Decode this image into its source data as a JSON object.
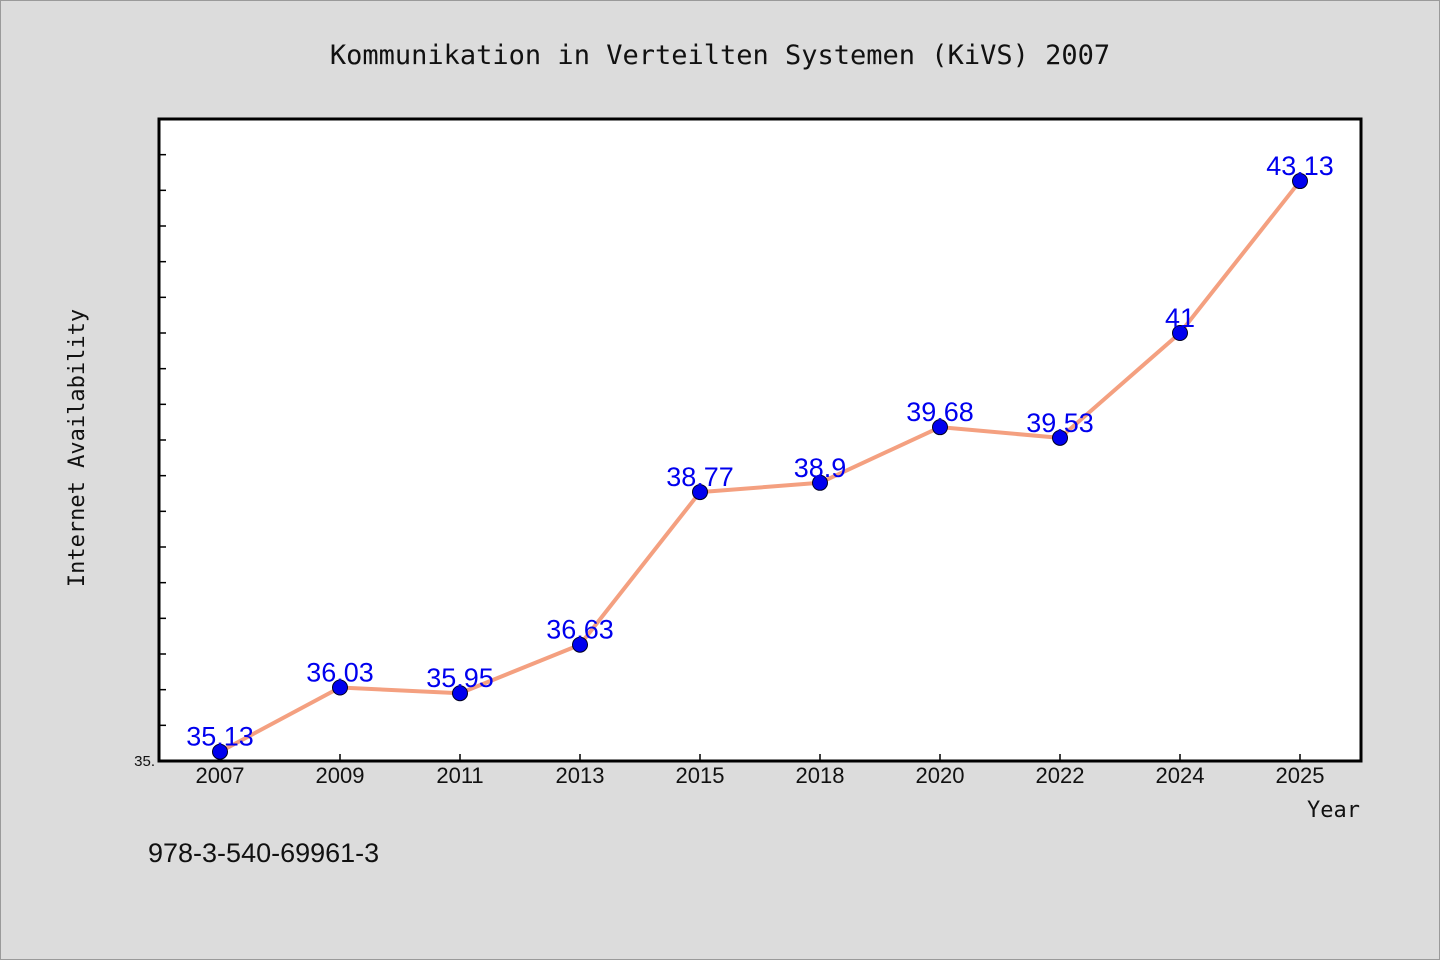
{
  "chart_data": {
    "type": "line",
    "title": "Kommunikation in Verteilten Systemen (KiVS) 2007",
    "xlabel": "Year",
    "ylabel": "Internet Availability",
    "categories": [
      "2007",
      "2009",
      "2011",
      "2013",
      "2015",
      "2018",
      "2020",
      "2022",
      "2024",
      "2025"
    ],
    "series": [
      {
        "values": [
          35.13,
          36.03,
          35.95,
          36.63,
          38.77,
          38.9,
          39.68,
          39.53,
          41,
          43.13
        ],
        "labels": [
          "35.13",
          "36.03",
          "35.95",
          "36.63",
          "38.77",
          "38.9",
          "39.68",
          "39.53",
          "41",
          "43.13"
        ]
      }
    ],
    "ylim": [
      35,
      44
    ],
    "ytick_labels": [
      "35."
    ],
    "grid": false,
    "line_color": "#f4a080",
    "marker_color": "#0000ee"
  },
  "footer_text": "978-3-540-69961-3"
}
